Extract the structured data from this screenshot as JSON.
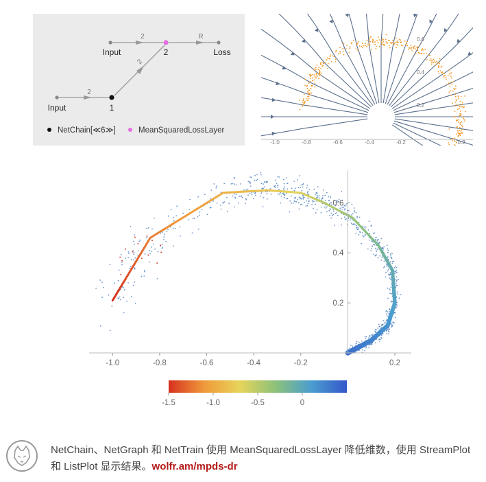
{
  "graph_diagram": {
    "nodes": {
      "input_top": "Input",
      "input_bottom": "Input",
      "node1": "1",
      "node2": "2",
      "loss": "Loss"
    },
    "edges": {
      "input_top_to_2": "2",
      "input_bottom_to_1": "2",
      "node1_to_2": "2",
      "node2_to_loss": "R"
    },
    "legend": {
      "item1": "NetChain[≪6≫]",
      "item2": "MeanSquaredLossLayer"
    },
    "colors": {
      "node1": "#111111",
      "node2": "#e36fe0",
      "edge": "#999999"
    }
  },
  "stream_plot": {
    "x_ticks": [
      "-1.0",
      "-0.8",
      "-0.6",
      "-0.4",
      "-0.2",
      "0.2"
    ],
    "y_ticks": [
      "0.6",
      "0.4",
      "0.2"
    ],
    "colors": {
      "stream": "#5a6f8c",
      "points": "#f19a2a"
    }
  },
  "chart_data": {
    "type": "scatter",
    "xlim": [
      -1.1,
      0.27
    ],
    "ylim": [
      0,
      0.73
    ],
    "x_ticks": [
      "-1.0",
      "-0.8",
      "-0.6",
      "-0.4",
      "-0.2",
      "0.2"
    ],
    "x_tick_values": [
      -1.0,
      -0.8,
      -0.6,
      -0.4,
      -0.2,
      0.2
    ],
    "y_ticks": [
      "0.2",
      "0.4",
      "0.6"
    ],
    "y_tick_values": [
      0.2,
      0.4,
      0.6
    ],
    "curve": [
      {
        "x": -1.0,
        "y": 0.21,
        "t": -1.5
      },
      {
        "x": -0.84,
        "y": 0.46,
        "t": -1.2
      },
      {
        "x": -0.53,
        "y": 0.64,
        "t": -0.95
      },
      {
        "x": -0.34,
        "y": 0.65,
        "t": -0.8
      },
      {
        "x": -0.2,
        "y": 0.64,
        "t": -0.65
      },
      {
        "x": -0.1,
        "y": 0.6,
        "t": -0.5
      },
      {
        "x": 0.02,
        "y": 0.54,
        "t": -0.35
      },
      {
        "x": 0.13,
        "y": 0.43,
        "t": -0.2
      },
      {
        "x": 0.19,
        "y": 0.33,
        "t": -0.05
      },
      {
        "x": 0.2,
        "y": 0.2,
        "t": 0.05
      },
      {
        "x": 0.17,
        "y": 0.11,
        "t": 0.15
      },
      {
        "x": 0.1,
        "y": 0.05,
        "t": 0.25
      },
      {
        "x": 0.0,
        "y": 0.0,
        "t": 0.35
      }
    ],
    "colorbar": {
      "ticks": [
        "-1.5",
        "-1.0",
        "-0.5",
        "0"
      ],
      "tick_values": [
        -1.5,
        -1.0,
        -0.5,
        0
      ],
      "range": [
        -1.5,
        0.5
      ]
    },
    "grid": false,
    "colors": {
      "points": "#3b73b9",
      "axis": "#bbbbbb"
    }
  },
  "footer": {
    "caption_text": "NetChain、NetGraph 和 NetTrain 使用 MeanSquaredLossLayer 降低维数，使用 StreamPlot 和 ListPlot 显示结果。",
    "link_text": "wolfr.am/mpds-dr",
    "logo_icon": "wolf-head-icon"
  }
}
